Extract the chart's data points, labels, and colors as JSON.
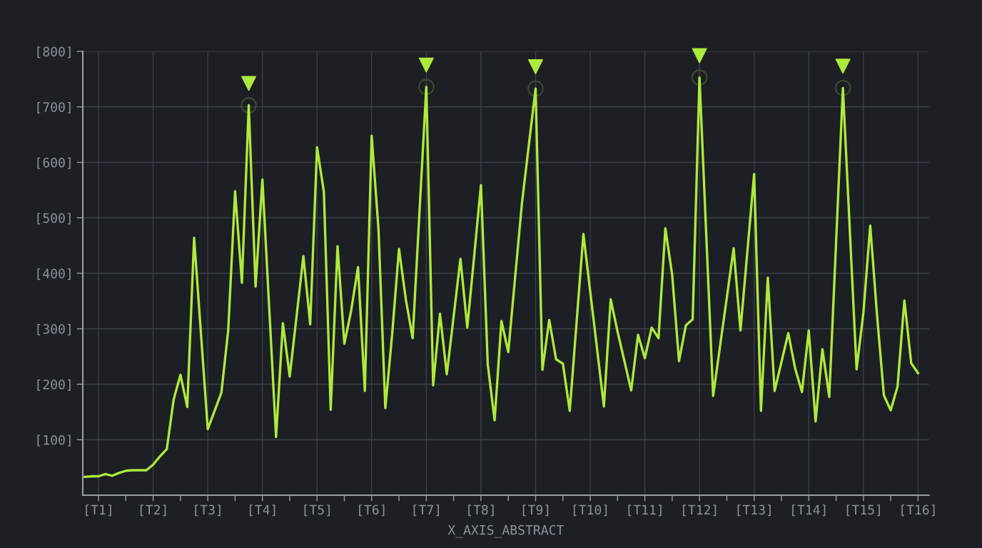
{
  "chart_data": {
    "type": "line",
    "xlabel": "X_AXIS_ABSTRACT",
    "categories": [
      null,
      null,
      "[T1]",
      null,
      null,
      null,
      null,
      null,
      null,
      null,
      "[T2]",
      null,
      null,
      null,
      null,
      null,
      null,
      null,
      "[T3]",
      null,
      null,
      null,
      null,
      null,
      null,
      null,
      "[T4]",
      null,
      null,
      null,
      null,
      null,
      null,
      null,
      "[T5]",
      null,
      null,
      null,
      null,
      null,
      null,
      null,
      "[T6]",
      null,
      null,
      null,
      null,
      null,
      null,
      null,
      "[T7]",
      null,
      null,
      null,
      null,
      null,
      null,
      null,
      "[T8]",
      null,
      null,
      null,
      null,
      null,
      null,
      null,
      "[T9]",
      null,
      null,
      null,
      null,
      null,
      null,
      null,
      "[T10]",
      null,
      null,
      null,
      null,
      null,
      null,
      null,
      "[T11]",
      null,
      null,
      null,
      null,
      null,
      null,
      null,
      "[T12]",
      null,
      null,
      null,
      null,
      null,
      null,
      null,
      "[T13]",
      null,
      null,
      null,
      null,
      null,
      null,
      null,
      "[T14]",
      null,
      null,
      null,
      null,
      null,
      null,
      null,
      "[T15]",
      null,
      null,
      null,
      null,
      null,
      null,
      null,
      "[T16]"
    ],
    "ylim": [
      0,
      800
    ],
    "yticks": [
      {
        "value": 100,
        "label": "[100]"
      },
      {
        "value": 200,
        "label": "[200]"
      },
      {
        "value": 300,
        "label": "[300]"
      },
      {
        "value": 400,
        "label": "[400]"
      },
      {
        "value": 500,
        "label": "[500]"
      },
      {
        "value": 600,
        "label": "[600]"
      },
      {
        "value": 700,
        "label": "[700]"
      },
      {
        "value": 800,
        "label": "[800]"
      }
    ],
    "grid": true,
    "marker": "none",
    "line_style": "solid",
    "series": [
      {
        "color": "#aeea3c",
        "values": [
          33,
          34,
          34,
          38,
          35,
          40,
          44,
          45,
          45,
          45,
          55,
          70,
          83,
          172,
          217,
          159,
          464,
          292,
          119,
          152,
          185,
          298,
          548,
          383,
          703,
          376,
          569,
          337,
          105,
          310,
          214,
          322,
          431,
          308,
          627,
          547,
          154,
          449,
          273,
          333,
          411,
          188,
          648,
          479,
          157,
          290,
          444,
          353,
          283,
          510,
          736,
          198,
          327,
          218,
          322,
          426,
          302,
          430,
          559,
          235,
          135,
          314,
          258,
          392,
          526,
          630,
          733,
          226,
          316,
          245,
          237,
          152,
          311,
          471,
          367,
          264,
          160,
          353,
          295,
          242,
          189,
          289,
          247,
          302,
          283,
          481,
          397,
          242,
          306,
          317,
          753,
          466,
          179,
          268,
          356,
          445,
          297,
          438,
          579,
          152,
          392,
          188,
          240,
          292,
          229,
          186,
          297,
          133,
          263,
          177,
          456,
          734,
          480,
          227,
          329,
          486,
          324,
          180,
          153,
          196,
          351,
          238,
          220
        ]
      },
      {
        "type": "scatter",
        "color": "#3d4a30",
        "marker": "circle",
        "values": [
          null,
          null,
          null,
          null,
          null,
          null,
          null,
          null,
          null,
          null,
          null,
          null,
          null,
          null,
          null,
          null,
          null,
          null,
          null,
          null,
          null,
          null,
          null,
          null,
          703,
          null,
          null,
          null,
          null,
          null,
          null,
          null,
          null,
          null,
          null,
          null,
          null,
          null,
          null,
          null,
          null,
          null,
          null,
          null,
          null,
          null,
          null,
          null,
          null,
          null,
          736,
          null,
          null,
          null,
          null,
          null,
          null,
          null,
          null,
          null,
          null,
          null,
          null,
          null,
          null,
          null,
          733,
          null,
          null,
          null,
          null,
          null,
          null,
          null,
          null,
          null,
          null,
          null,
          null,
          null,
          null,
          null,
          null,
          null,
          null,
          null,
          null,
          null,
          null,
          null,
          753,
          null,
          null,
          null,
          null,
          null,
          null,
          null,
          null,
          null,
          null,
          null,
          null,
          null,
          null,
          null,
          null,
          null,
          null,
          null,
          null,
          734,
          null,
          null,
          null,
          null,
          null,
          null,
          null,
          null,
          null,
          null,
          null
        ]
      }
    ]
  }
}
